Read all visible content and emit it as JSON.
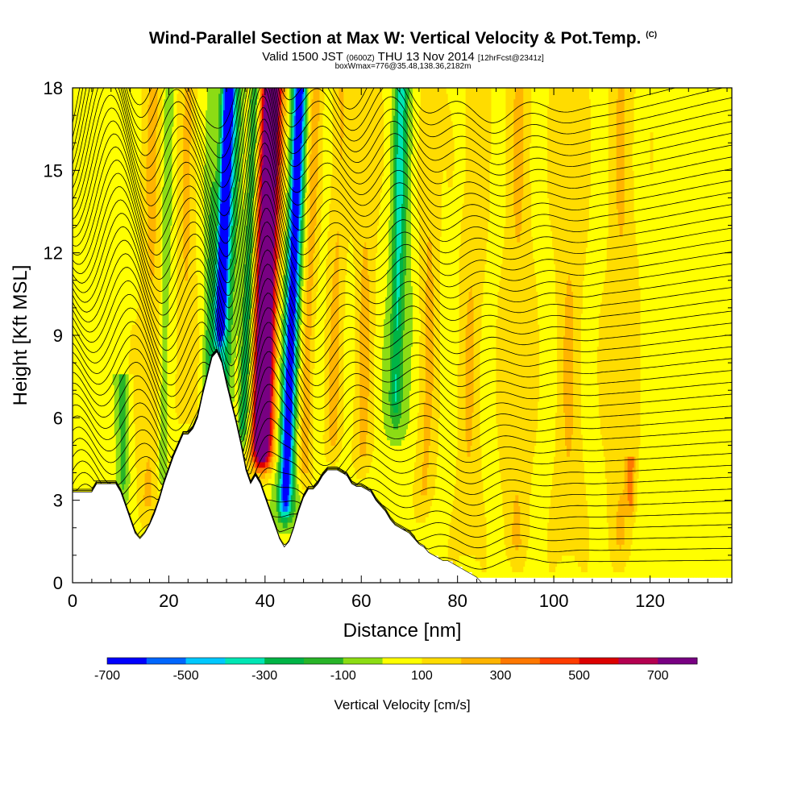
{
  "chart_data": {
    "type": "heatmap",
    "title": "Wind-Parallel Section at Max W: Vertical Velocity & Pot.Temp.",
    "copyright": "(C)",
    "subtitle_main": "Valid 1500 JST",
    "subtitle_utc": "(0600Z)",
    "subtitle_date": "THU 13 Nov 2014",
    "subtitle_fcst": "[12hrFcst@2341z]",
    "subtitle2": "boxWmax=776@35.48,138.36,2182m",
    "xlabel": "Distance [nm]",
    "ylabel": "Height [Kft MSL]",
    "xlim": [
      0,
      137
    ],
    "ylim": [
      0,
      18
    ],
    "xticks": [
      "0",
      "20",
      "40",
      "60",
      "80",
      "100",
      "120"
    ],
    "yticks": [
      "0",
      "3",
      "6",
      "9",
      "12",
      "15",
      "18"
    ],
    "colorbar": {
      "title": "Vertical Velocity [cm/s]",
      "labels": [
        "-700",
        "-500",
        "-300",
        "-100",
        "100",
        "300",
        "500",
        "700"
      ],
      "colors": [
        "#0000ff",
        "#0066ff",
        "#00c8ff",
        "#00e6b4",
        "#00b446",
        "#28b428",
        "#8cdc14",
        "#ffff00",
        "#ffdc00",
        "#ffb400",
        "#ff7800",
        "#ff3c00",
        "#dc0000",
        "#b40050",
        "#780082"
      ]
    },
    "terrain": [
      [
        0,
        3.3
      ],
      [
        4,
        3.3
      ],
      [
        5,
        3.6
      ],
      [
        9,
        3.6
      ],
      [
        10,
        3.3
      ],
      [
        11,
        2.8
      ],
      [
        12,
        2.3
      ],
      [
        13,
        1.8
      ],
      [
        14,
        1.6
      ],
      [
        15,
        1.8
      ],
      [
        16,
        2.1
      ],
      [
        17,
        2.5
      ],
      [
        18,
        3.0
      ],
      [
        19,
        3.6
      ],
      [
        20,
        4.1
      ],
      [
        21,
        4.6
      ],
      [
        22,
        5.0
      ],
      [
        23,
        5.4
      ],
      [
        24,
        5.4
      ],
      [
        25,
        5.6
      ],
      [
        26,
        6.0
      ],
      [
        27,
        6.8
      ],
      [
        28,
        7.5
      ],
      [
        29,
        8.2
      ],
      [
        30,
        8.4
      ],
      [
        31,
        8.0
      ],
      [
        32,
        7.2
      ],
      [
        33,
        6.5
      ],
      [
        34,
        5.8
      ],
      [
        35,
        5.0
      ],
      [
        36,
        4.1
      ],
      [
        37,
        3.6
      ],
      [
        38,
        3.9
      ],
      [
        39,
        3.6
      ],
      [
        40,
        3.1
      ],
      [
        41,
        2.6
      ],
      [
        42,
        2.1
      ],
      [
        43,
        1.6
      ],
      [
        44,
        1.3
      ],
      [
        45,
        1.5
      ],
      [
        46,
        2.0
      ],
      [
        47,
        2.6
      ],
      [
        48,
        3.1
      ],
      [
        49,
        3.4
      ],
      [
        50,
        3.4
      ],
      [
        51,
        3.6
      ],
      [
        52,
        3.9
      ],
      [
        53,
        4.1
      ],
      [
        54,
        4.1
      ],
      [
        55,
        4.1
      ],
      [
        56,
        4.0
      ],
      [
        57,
        3.9
      ],
      [
        58,
        3.6
      ],
      [
        59,
        3.5
      ],
      [
        60,
        3.5
      ],
      [
        61,
        3.4
      ],
      [
        62,
        3.3
      ],
      [
        63,
        3.0
      ],
      [
        64,
        2.8
      ],
      [
        65,
        2.6
      ],
      [
        66,
        2.3
      ],
      [
        67,
        2.1
      ],
      [
        68,
        2.0
      ],
      [
        69,
        1.9
      ],
      [
        70,
        1.8
      ],
      [
        71,
        1.6
      ],
      [
        72,
        1.4
      ],
      [
        73,
        1.3
      ],
      [
        74,
        1.1
      ],
      [
        75,
        1.0
      ],
      [
        76,
        0.9
      ],
      [
        77,
        0.8
      ],
      [
        78,
        0.8
      ],
      [
        79,
        0.7
      ],
      [
        80,
        0.6
      ],
      [
        81,
        0.5
      ],
      [
        82,
        0.4
      ],
      [
        83,
        0.3
      ],
      [
        84,
        0.2
      ],
      [
        85,
        0.0
      ]
    ],
    "updrafts": [
      {
        "x": 15.5,
        "w": 2.2,
        "zTop": 18,
        "zBot": 1.8,
        "v": 150,
        "tilt": 0.1
      },
      {
        "x": 23,
        "w": 1.8,
        "zTop": 18,
        "zBot": 5.2,
        "v": 150,
        "tilt": 0.1
      },
      {
        "x": 39,
        "w": 1.6,
        "zTop": 18,
        "zBot": 3.9,
        "v": 700,
        "tilt": 0.15
      },
      {
        "x": 39.5,
        "w": 2.5,
        "zTop": 18,
        "zBot": 3.5,
        "v": 450,
        "tilt": 0.15
      },
      {
        "x": 48,
        "w": 1.5,
        "zTop": 18,
        "zBot": 3.0,
        "v": 200,
        "tilt": 0.15
      },
      {
        "x": 54,
        "w": 1.8,
        "zTop": 18,
        "zBot": 4.0,
        "v": 150,
        "tilt": 0.12
      },
      {
        "x": 60,
        "w": 2.0,
        "zTop": 18,
        "zBot": 3.5,
        "v": 150,
        "tilt": 0.1
      },
      {
        "x": 73,
        "w": 2.0,
        "zTop": 18,
        "zBot": 2.0,
        "v": 150,
        "tilt": 0.12
      },
      {
        "x": 82,
        "w": 2.5,
        "zTop": 18,
        "zBot": 0.3,
        "v": 130,
        "tilt": 0.1
      },
      {
        "x": 92,
        "w": 3.0,
        "zTop": 18,
        "zBot": 0.3,
        "v": 130,
        "tilt": 0.05
      },
      {
        "x": 103,
        "w": 3.0,
        "zTop": 18,
        "zBot": 0.3,
        "v": 130,
        "tilt": 0.03
      },
      {
        "x": 114,
        "w": 3.0,
        "zTop": 18,
        "zBot": 0.3,
        "v": 130,
        "tilt": 0.02
      },
      {
        "x": 116,
        "w": 0.8,
        "zTop": 4.5,
        "zBot": 2.0,
        "v": 250,
        "tilt": 0.0
      }
    ],
    "downdrafts": [
      {
        "x": 10.5,
        "w": 1.2,
        "zTop": 7.5,
        "zBot": 2.5,
        "v": -200,
        "tilt": 0.0
      },
      {
        "x": 30.5,
        "w": 1.0,
        "zTop": 18,
        "zBot": 8.4,
        "v": -700,
        "tilt": 0.2
      },
      {
        "x": 30.5,
        "w": 2.2,
        "zTop": 18,
        "zBot": 5.5,
        "v": -400,
        "tilt": 0.2
      },
      {
        "x": 35.2,
        "w": 1.0,
        "zTop": 18,
        "zBot": 4.5,
        "v": -300,
        "tilt": 0.2
      },
      {
        "x": 44,
        "w": 1.1,
        "zTop": 18,
        "zBot": 2.0,
        "v": -550,
        "tilt": 0.2
      },
      {
        "x": 44,
        "w": 2.2,
        "zTop": 18,
        "zBot": 1.5,
        "v": -300,
        "tilt": 0.2
      },
      {
        "x": 67,
        "w": 1.2,
        "zTop": 18,
        "zBot": 5.5,
        "v": -250,
        "tilt": 0.1
      },
      {
        "x": 67.5,
        "w": 2.2,
        "zTop": 18,
        "zBot": 4.5,
        "v": -150,
        "tilt": 0.1
      },
      {
        "x": 18.5,
        "w": 1.0,
        "zTop": 18,
        "zBot": 3.0,
        "v": -150,
        "tilt": 0.1
      },
      {
        "x": 28,
        "w": 1.2,
        "zTop": 18,
        "zBot": 6.0,
        "v": -150,
        "tilt": 0.1
      }
    ],
    "lowzones": [
      {
        "x0": 101,
        "x1": 137,
        "zTop": 4.8,
        "v": 50
      }
    ],
    "isentrope_count": 42
  }
}
